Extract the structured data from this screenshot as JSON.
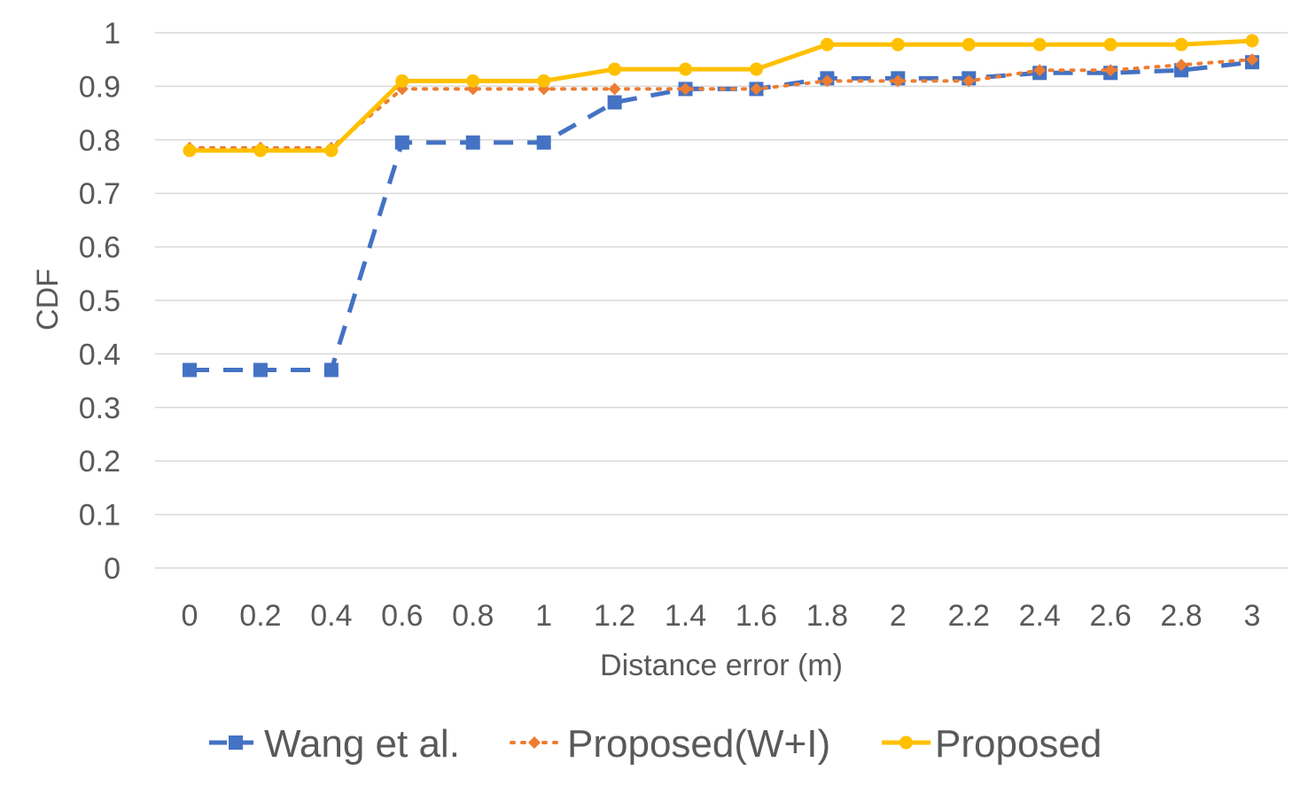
{
  "chart_data": {
    "type": "line",
    "title": "",
    "xlabel": "Distance error (m)",
    "ylabel": "CDF",
    "categories": [
      "0",
      "0.2",
      "0.4",
      "0.6",
      "0.8",
      "1",
      "1.2",
      "1.4",
      "1.6",
      "1.8",
      "2",
      "2.2",
      "2.4",
      "2.6",
      "2.8",
      "3"
    ],
    "y_ticks": [
      "0",
      "0.1",
      "0.2",
      "0.3",
      "0.4",
      "0.5",
      "0.6",
      "0.7",
      "0.8",
      "0.9",
      "1"
    ],
    "ylim": [
      0,
      1
    ],
    "grid": "horizontal",
    "legend_position": "bottom",
    "series": [
      {
        "name": "Wang et al.",
        "color": "#4472C4",
        "line_style": "dashed",
        "marker": "square",
        "values": [
          0.37,
          0.37,
          0.37,
          0.795,
          0.795,
          0.795,
          0.87,
          0.895,
          0.895,
          0.915,
          0.915,
          0.915,
          0.925,
          0.925,
          0.93,
          0.945
        ]
      },
      {
        "name": "Proposed(W+I)",
        "color": "#ED7D31",
        "line_style": "dotted",
        "marker": "diamond",
        "values": [
          0.785,
          0.785,
          0.785,
          0.895,
          0.895,
          0.895,
          0.895,
          0.895,
          0.895,
          0.91,
          0.91,
          0.91,
          0.93,
          0.93,
          0.94,
          0.95
        ]
      },
      {
        "name": "Proposed",
        "color": "#FFC000",
        "line_style": "solid",
        "marker": "circle",
        "values": [
          0.78,
          0.78,
          0.78,
          0.91,
          0.91,
          0.91,
          0.932,
          0.932,
          0.932,
          0.978,
          0.978,
          0.978,
          0.978,
          0.978,
          0.978,
          0.985
        ]
      }
    ]
  }
}
